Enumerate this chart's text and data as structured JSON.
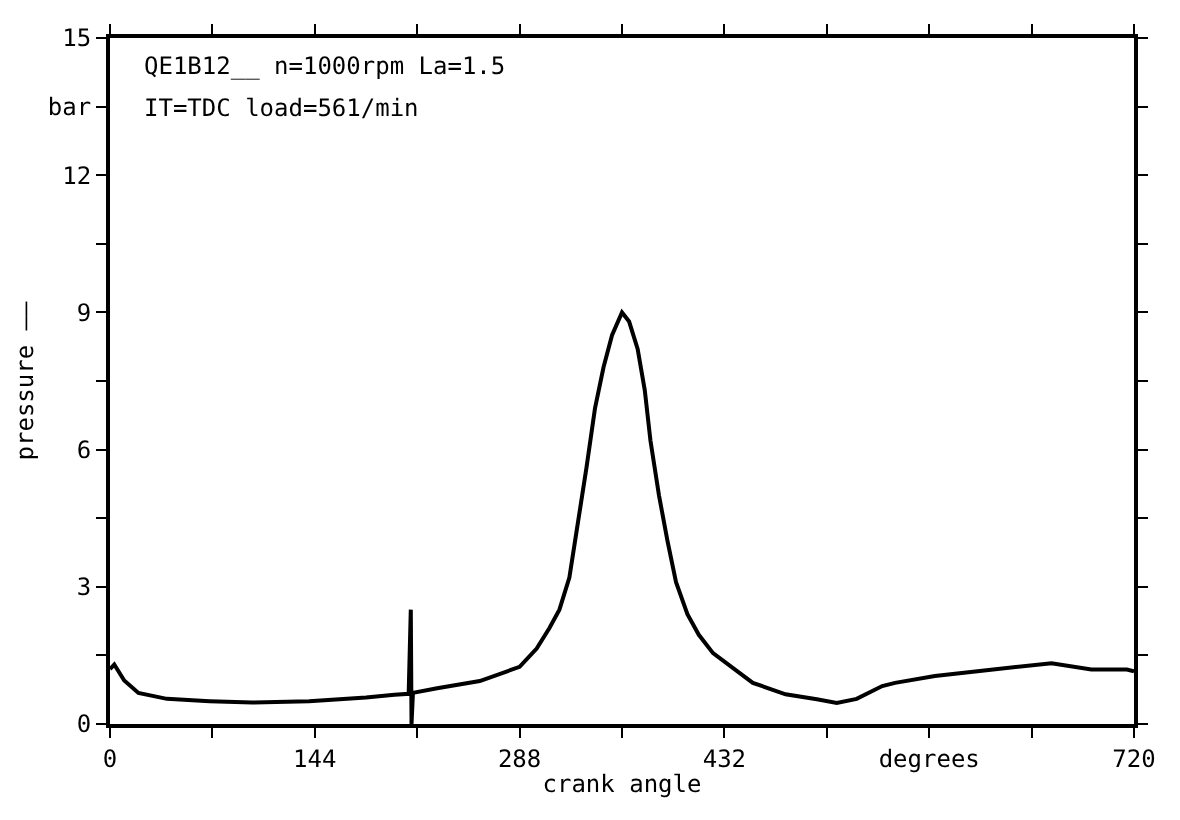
{
  "chart_data": {
    "type": "line",
    "xlabel": "crank angle",
    "ylabel": "pressure ——",
    "annotations": [
      "QE1B12__ n=1000rpm La=1.5",
      "IT=TDC load=561/min"
    ],
    "xlim": [
      0,
      720
    ],
    "ylim": [
      0,
      15
    ],
    "xticks": [
      0,
      {
        "value": 72,
        "label": null
      },
      144,
      {
        "value": 216,
        "label": null
      },
      288,
      {
        "value": 360,
        "label": null
      },
      432,
      {
        "value": 504,
        "label": null
      },
      {
        "value": 576,
        "label": "degrees"
      },
      {
        "value": 648,
        "label": null
      },
      720
    ],
    "yticks": [
      0,
      {
        "value": 1.5,
        "label": null
      },
      3,
      {
        "value": 4.5,
        "label": null
      },
      6,
      {
        "value": 7.5,
        "label": null
      },
      9,
      {
        "value": 10.5,
        "label": null
      },
      12,
      {
        "value": 13.5,
        "label": "bar"
      },
      15
    ],
    "grid": false,
    "marker": "none",
    "line_style": "solid",
    "series": [
      {
        "color": "#000000",
        "x": [
          0,
          3,
          10,
          20,
          40,
          70,
          100,
          140,
          180,
          200,
          210,
          211.5,
          212,
          213,
          230,
          260,
          288,
          300,
          309,
          316,
          323,
          328,
          335,
          341,
          347,
          353,
          360,
          365,
          371,
          376,
          380,
          386,
          392,
          398,
          406,
          414,
          424,
          452,
          475,
          497,
          511,
          525,
          543,
          552,
          580,
          621,
          662,
          690,
          715,
          720
        ],
        "values": [
          1.2,
          1.3,
          0.95,
          0.68,
          0.55,
          0.5,
          0.47,
          0.5,
          0.58,
          0.64,
          0.66,
          2.5,
          0,
          0.68,
          0.78,
          0.94,
          1.25,
          1.65,
          2.1,
          2.5,
          3.2,
          4.2,
          5.6,
          6.9,
          7.8,
          8.5,
          9.0,
          8.8,
          8.2,
          7.3,
          6.2,
          5.0,
          4.0,
          3.1,
          2.4,
          1.95,
          1.55,
          0.9,
          0.65,
          0.54,
          0.46,
          0.55,
          0.83,
          0.9,
          1.05,
          1.19,
          1.33,
          1.19,
          1.19,
          1.15
        ]
      }
    ]
  }
}
